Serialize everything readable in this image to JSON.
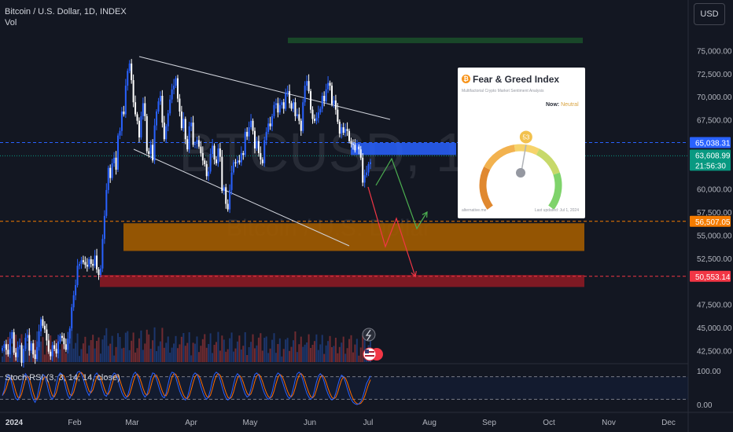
{
  "header": {
    "symbol": "Bitcoin / U.S. Dollar, 1D, INDEX",
    "volume_label": "Vol"
  },
  "currency_button": "USD",
  "watermark": {
    "ticker": "BTCUSD, 1",
    "name": "Bitcoin / U.S. Dollar"
  },
  "price_axis": {
    "ticks": [
      "75,000.00",
      "72,500.00",
      "70,000.00",
      "67,500.00",
      "60,000.00",
      "57,500.00",
      "55,000.00",
      "52,500.00",
      "47,500.00",
      "45,000.00",
      "42,500.00"
    ]
  },
  "price_labels": [
    {
      "text": "65,038.31",
      "value": 65038.31,
      "color": "#2962ff"
    },
    {
      "text": "63,608.99",
      "value": 63608.99,
      "color": "#089981"
    },
    {
      "text": "21:56:30",
      "color": "#089981"
    },
    {
      "text": "56,507.05",
      "value": 56507.05,
      "color": "#f57c00"
    },
    {
      "text": "50,553.14",
      "value": 50553.14,
      "color": "#f23645"
    }
  ],
  "time_axis": [
    "2024",
    "Feb",
    "Mar",
    "Apr",
    "May",
    "Jun",
    "Jul",
    "Aug",
    "Sep",
    "Oct",
    "Nov",
    "Dec"
  ],
  "fear_greed": {
    "title": "Fear & Greed Index",
    "subtitle": "Multifactorial Crypto Market Sentiment Analysis",
    "now_label": "Now:",
    "now_value": "Neutral",
    "value": 53,
    "footer_left": "alternative.me",
    "footer_right": "Last updated: Jul 1, 2024"
  },
  "stoch_rsi": {
    "label": "Stoch RSI (3, 3, 14, 14, close)",
    "ticks": [
      "100.00",
      "0.00"
    ]
  },
  "chart_data": {
    "type": "candlestick",
    "colors": {
      "up": "#2962ff",
      "down": "#ffffff",
      "zone_demand": "#a35c00",
      "zone_support": "#8b1a24",
      "zone_top": "#1b4d2a"
    },
    "ylim": [
      40500,
      77500
    ],
    "zones": [
      {
        "name": "orange",
        "from": 53300,
        "to": 56300
      },
      {
        "name": "red",
        "from": 49400,
        "to": 50700
      },
      {
        "name": "blue",
        "from": 63700,
        "to": 65000
      },
      {
        "name": "green",
        "from": 75800,
        "to": 76400
      }
    ],
    "closes": [
      42800,
      43200,
      42600,
      42100,
      43800,
      44500,
      42300,
      41800,
      42900,
      43100,
      41200,
      42700,
      43900,
      44200,
      42500,
      43300,
      42100,
      41600,
      42900,
      44600,
      45900,
      45200,
      44800,
      43600,
      42400,
      41900,
      43100,
      42700,
      42200,
      43500,
      44100,
      43900,
      43200,
      42600,
      43800,
      44900,
      47200,
      48500,
      49600,
      51700,
      51900,
      52300,
      52100,
      51800,
      51600,
      52400,
      51900,
      51700,
      52800,
      51300,
      50700,
      51400,
      54600,
      57100,
      59900,
      62300,
      61200,
      62800,
      63400,
      62100,
      65800,
      66300,
      68400,
      68100,
      71200,
      72800,
      73600,
      71800,
      69400,
      68100,
      67400,
      65600,
      67900,
      69300,
      67900,
      64100,
      63800,
      64800,
      63100,
      66900,
      68400,
      69500,
      70100,
      67200,
      65400,
      66800,
      68200,
      69700,
      70800,
      71200,
      72000,
      69800,
      68400,
      66600,
      67600,
      65400,
      64300,
      66800,
      67200,
      64800,
      64900,
      65300,
      64600,
      63900,
      63100,
      62700,
      61400,
      61900,
      63800,
      64700,
      63200,
      62800,
      64400,
      63500,
      59800,
      60200,
      58400,
      57800,
      59900,
      61800,
      62900,
      62800,
      63100,
      62900,
      63900,
      63700,
      66200,
      65700,
      66700,
      67400,
      66300,
      64400,
      65200,
      63900,
      63200,
      62800,
      65300,
      66200,
      67100,
      66800,
      67900,
      69100,
      69300,
      68300,
      69100,
      69400,
      68700,
      70400,
      70600,
      69300,
      68700,
      69400,
      67900,
      68100,
      67400,
      66300,
      69400,
      71200,
      71700,
      70600,
      68600,
      67600,
      67400,
      67700,
      68300,
      68700,
      70100,
      69500,
      70800,
      71500,
      71200,
      69200,
      69600,
      68600,
      67300,
      66000,
      66700,
      66100,
      66500,
      66300,
      65200,
      64900,
      64800,
      64200,
      64600,
      64300,
      63400,
      60700,
      61500,
      61800,
      62700,
      62900
    ],
    "stoch_rsi": {
      "ylim": [
        0,
        100
      ],
      "k": [
        30,
        45,
        72,
        85,
        80,
        60,
        38,
        22,
        18,
        30,
        55,
        78,
        88,
        80,
        58,
        35,
        20,
        12,
        25,
        50,
        74,
        86,
        82,
        64,
        42,
        26,
        20,
        34,
        60,
        82,
        90,
        86,
        70,
        48,
        30,
        22,
        36,
        58,
        80,
        92,
        94,
        88,
        74,
        56,
        40,
        30,
        42,
        64,
        84,
        90,
        82,
        64,
        46,
        32,
        28,
        40,
        62,
        82,
        90,
        86,
        72,
        54,
        38,
        28,
        22,
        30,
        48,
        70,
        86,
        92,
        84,
        66,
        48,
        34,
        26,
        32,
        52,
        76,
        90,
        88,
        74,
        56,
        40,
        28,
        24,
        36,
        60,
        82,
        92,
        90,
        78,
        60,
        42,
        30,
        22,
        18,
        26,
        44,
        66,
        84,
        90,
        86,
        72,
        54,
        38,
        26,
        20,
        28,
        46,
        70,
        86,
        92,
        88,
        72,
        54,
        36,
        24,
        18,
        22,
        38,
        60,
        80,
        88,
        82,
        66,
        48,
        34,
        26,
        30,
        48,
        70,
        86,
        90,
        84,
        68,
        50,
        36,
        26,
        20,
        24,
        40,
        62,
        82,
        90,
        86,
        72,
        56,
        40,
        28,
        22,
        30,
        50,
        72,
        88,
        92,
        86,
        70,
        52,
        36,
        26,
        20,
        26,
        44,
        66,
        82,
        88,
        82,
        66,
        48,
        34,
        24,
        18,
        22,
        36,
        56,
        74,
        84,
        80,
        66,
        48,
        32,
        20,
        12,
        8,
        6,
        8,
        14,
        26,
        44,
        62,
        72,
        82
      ]
    }
  }
}
